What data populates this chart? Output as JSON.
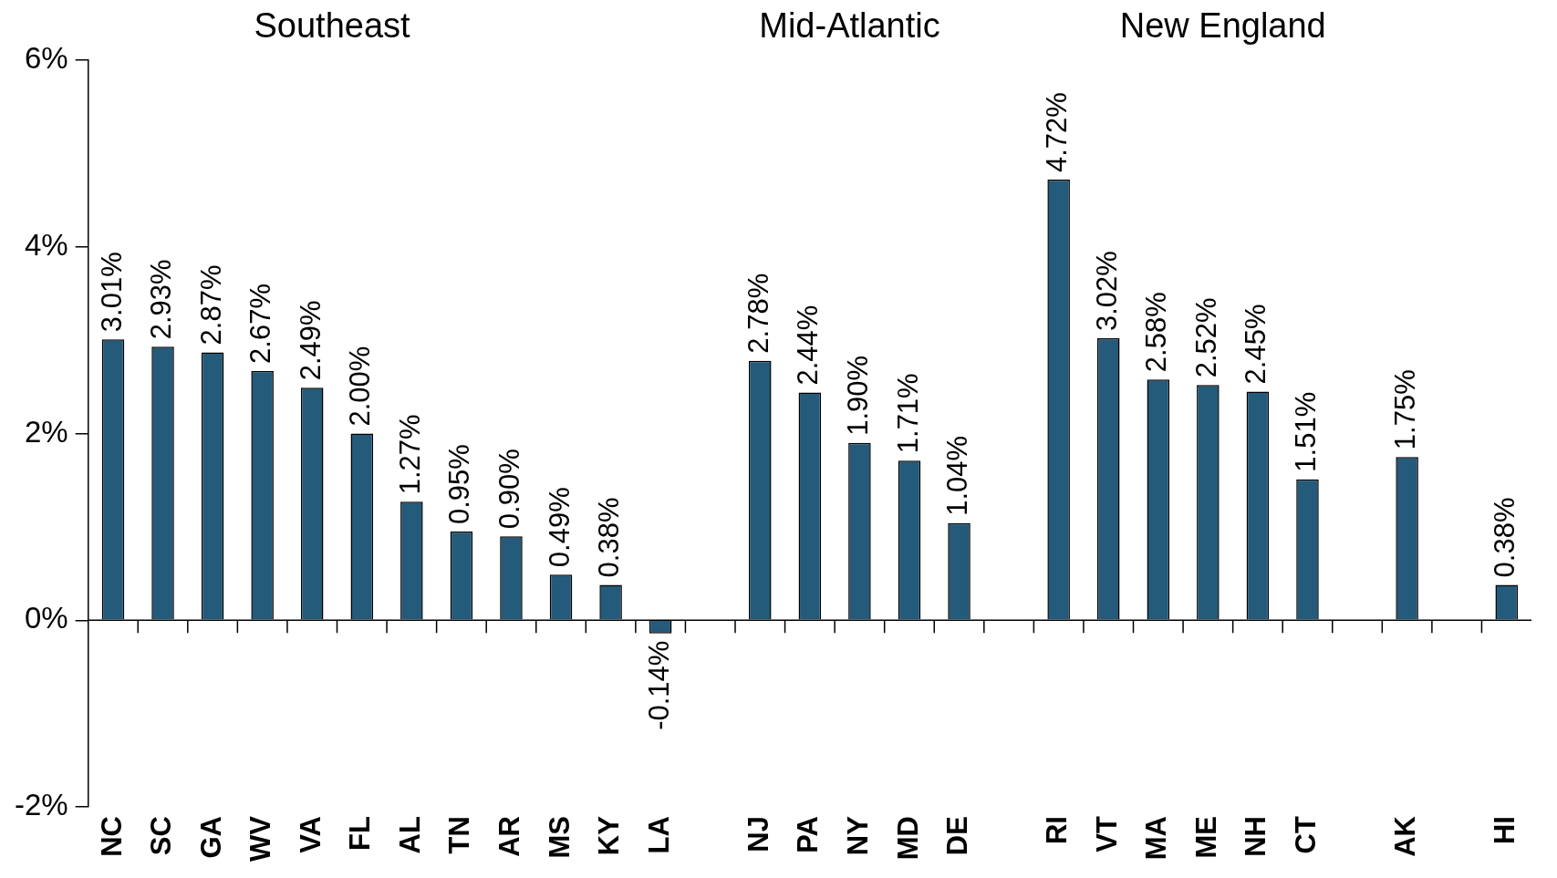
{
  "chart_data": {
    "type": "bar",
    "annotations": [
      "Southeast",
      "Mid-Atlantic",
      "New England"
    ],
    "categories": [
      "NC",
      "SC",
      "GA",
      "WV",
      "VA",
      "FL",
      "AL",
      "TN",
      "AR",
      "MS",
      "KY",
      "LA",
      null,
      "NJ",
      "PA",
      "NY",
      "MD",
      "DE",
      null,
      "RI",
      "VT",
      "MA",
      "ME",
      "NH",
      "CT",
      null,
      "AK",
      null,
      "HI"
    ],
    "values": [
      3.01,
      2.93,
      2.87,
      2.67,
      2.49,
      2.0,
      1.27,
      0.95,
      0.9,
      0.49,
      0.38,
      -0.14,
      null,
      2.78,
      2.44,
      1.9,
      1.71,
      1.04,
      null,
      4.72,
      3.02,
      2.58,
      2.52,
      2.45,
      1.51,
      null,
      1.75,
      null,
      0.38
    ],
    "value_labels": [
      "3.01%",
      "2.93%",
      "2.87%",
      "2.67%",
      "2.49%",
      "2.00%",
      "1.27%",
      "0.95%",
      "0.90%",
      "0.49%",
      "0.38%",
      "-0.14%",
      null,
      "2.78%",
      "2.44%",
      "1.90%",
      "1.71%",
      "1.04%",
      null,
      "4.72%",
      "3.02%",
      "2.58%",
      "2.52%",
      "2.45%",
      "1.51%",
      null,
      "1.75%",
      null,
      "0.38%"
    ],
    "color": "#245a7a",
    "ylim": [
      -2,
      6
    ],
    "yticks": [
      {
        "value": -2,
        "label": "-2%"
      },
      {
        "value": 0,
        "label": "0%"
      },
      {
        "value": 2,
        "label": "2%"
      },
      {
        "value": 4,
        "label": "4%"
      },
      {
        "value": 6,
        "label": "6%"
      }
    ],
    "legend": false
  }
}
